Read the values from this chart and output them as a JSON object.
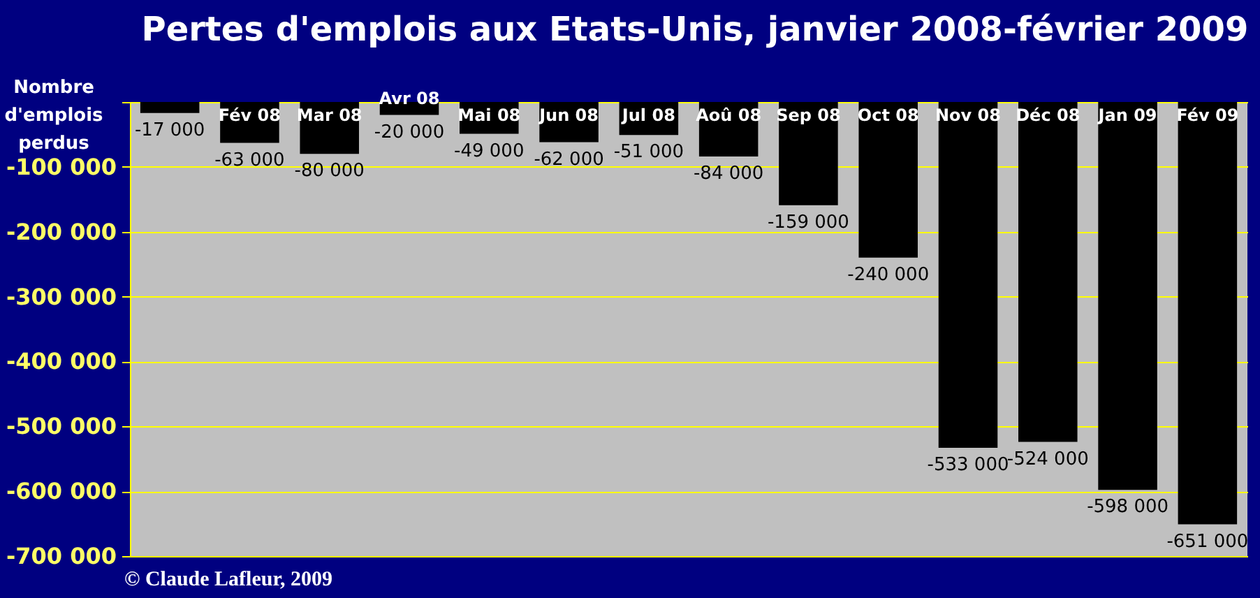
{
  "chart_data": {
    "type": "bar",
    "title": "Pertes d'emplois aux Etats-Unis, janvier 2008-février 2009",
    "ylabel": "Nombre d'emplois perdus",
    "categories": [
      null,
      "Fév 08",
      "Mar 08",
      "Avr 08",
      "Mai 08",
      "Jun 08",
      "Jul 08",
      "Aoû 08",
      "Sep 08",
      "Oct 08",
      "Nov 08",
      "Déc 08",
      "Jan 09",
      "Fév 09"
    ],
    "values": [
      -17000,
      -63000,
      -80000,
      -20000,
      -49000,
      -62000,
      -51000,
      -84000,
      -159000,
      -240000,
      -533000,
      -524000,
      -598000,
      -651000
    ],
    "value_labels": [
      "-17 000",
      "-63 000",
      "-80 000",
      "-20 000",
      "-49 000",
      "-62 000",
      "-51 000",
      "-84 000",
      "-159 000",
      "-240 000",
      "-533 000",
      "-524 000",
      "-598 000",
      "-651 000"
    ],
    "color": "#000000",
    "ylim": [
      -700000,
      0
    ],
    "yticks": [
      {
        "value": -700000,
        "label": "-700 000"
      },
      {
        "value": -600000,
        "label": "-600 000"
      },
      {
        "value": -500000,
        "label": "-500 000"
      },
      {
        "value": -400000,
        "label": "-400 000"
      },
      {
        "value": -300000,
        "label": "-300 000"
      },
      {
        "value": -200000,
        "label": "-200 000"
      },
      {
        "value": -100000,
        "label": "-100 000"
      },
      {
        "value": 0,
        "label": null
      }
    ],
    "grid": "y",
    "annotations": [
      "© Claude Lafleur, 2009"
    ]
  }
}
